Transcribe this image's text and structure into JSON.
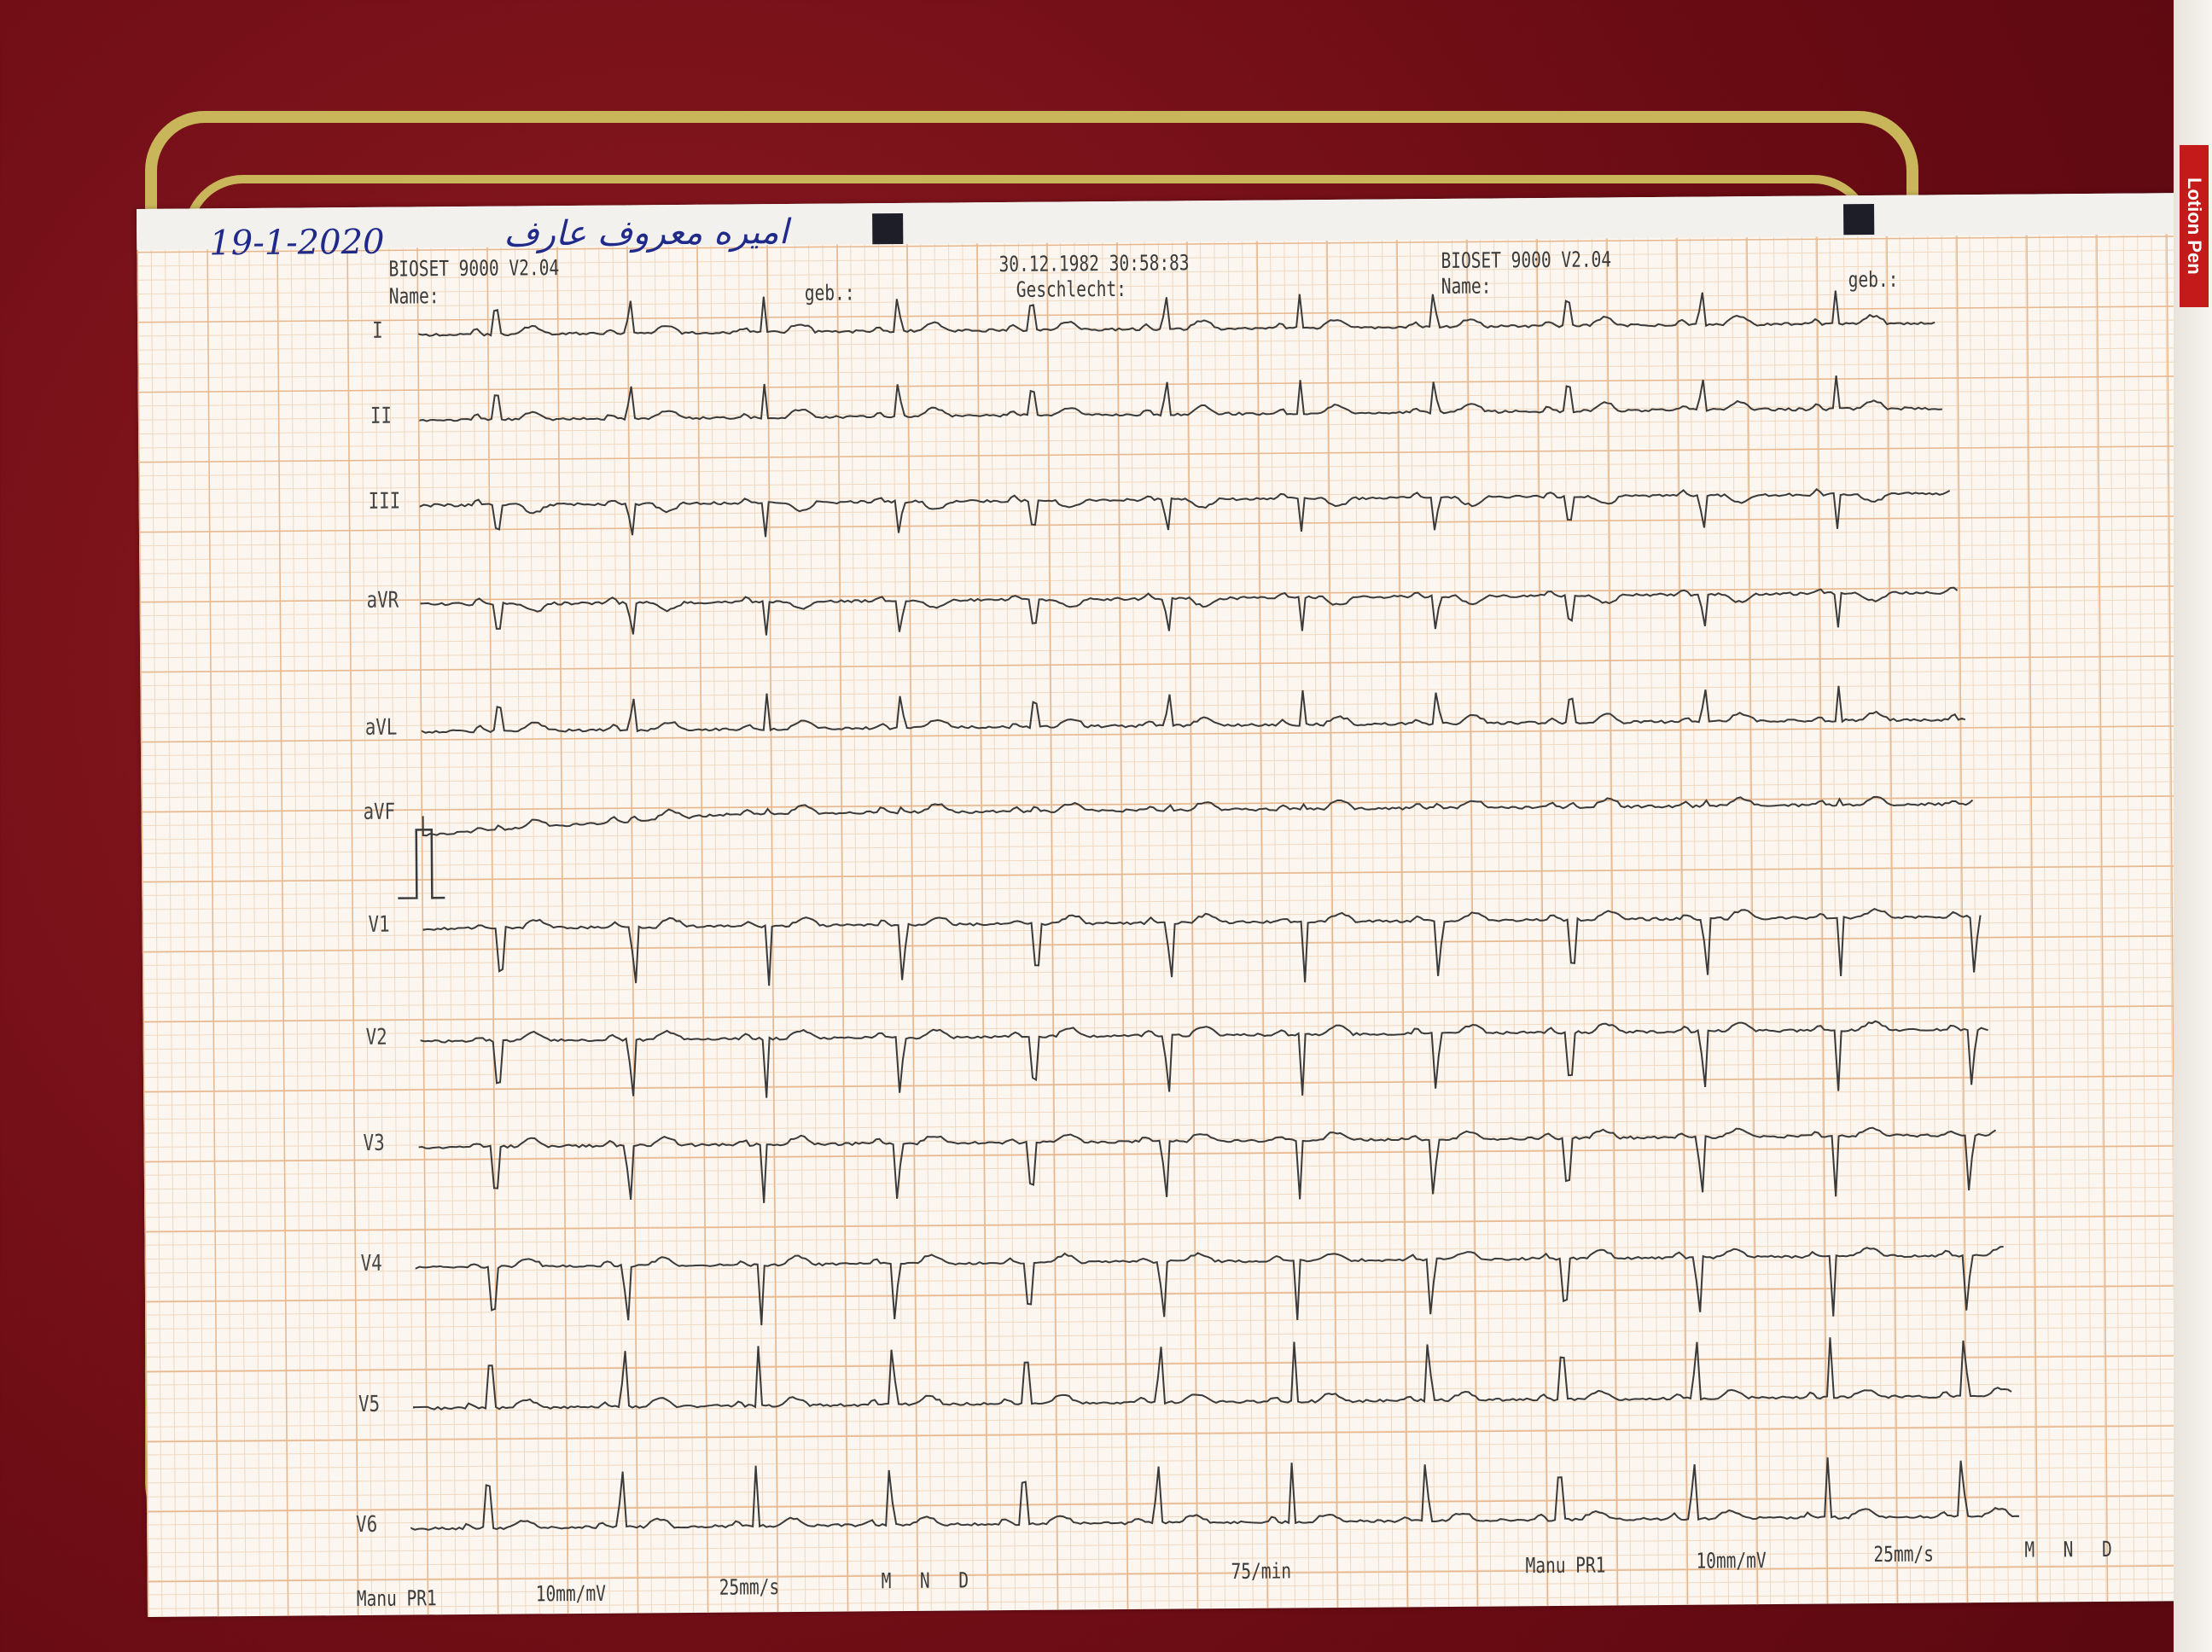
{
  "handwriting": {
    "date": "19-1-2020",
    "patient_name": "اميره معروف عارف"
  },
  "header_left": {
    "device": "BIOSET 9000 V2.04",
    "name_label": "Name:",
    "birth_label": "geb.:"
  },
  "header_mid": {
    "datetime": "30.12.1982 30:58:83",
    "sex_label": "Geschlecht:"
  },
  "header_right": {
    "device": "BIOSET 9000 V2.04",
    "name_label": "Name:",
    "birth_label": "geb.:"
  },
  "leads": [
    {
      "label": "I",
      "qrs": "up"
    },
    {
      "label": "II",
      "qrs": "up"
    },
    {
      "label": "III",
      "qrs": "down"
    },
    {
      "label": "aVR",
      "qrs": "down"
    },
    {
      "label": "aVL",
      "qrs": "up"
    },
    {
      "label": "aVF",
      "qrs": "flat"
    },
    {
      "label": "V1",
      "qrs": "down"
    },
    {
      "label": "V2",
      "qrs": "down"
    },
    {
      "label": "V3",
      "qrs": "down"
    },
    {
      "label": "V4",
      "qrs": "down"
    },
    {
      "label": "V5",
      "qrs": "up"
    },
    {
      "label": "V6",
      "qrs": "up"
    }
  ],
  "footer_left": {
    "mode": "Manu PR1",
    "gain": "10mm/mV",
    "speed": "25mm/s",
    "filters": "M N D"
  },
  "footer_mid": {
    "heart_rate": "75/min"
  },
  "footer_right": {
    "mode": "Manu PR1",
    "gain": "10mm/mV",
    "speed": "25mm/s",
    "filters": "M N D"
  },
  "pen_label": "Lotion Pen",
  "colors": {
    "background": "#7a1018",
    "frame": "#c9b55a",
    "grid": "#e7b88f",
    "trace": "#3a3a3a",
    "ink": "#1f2a8a"
  }
}
